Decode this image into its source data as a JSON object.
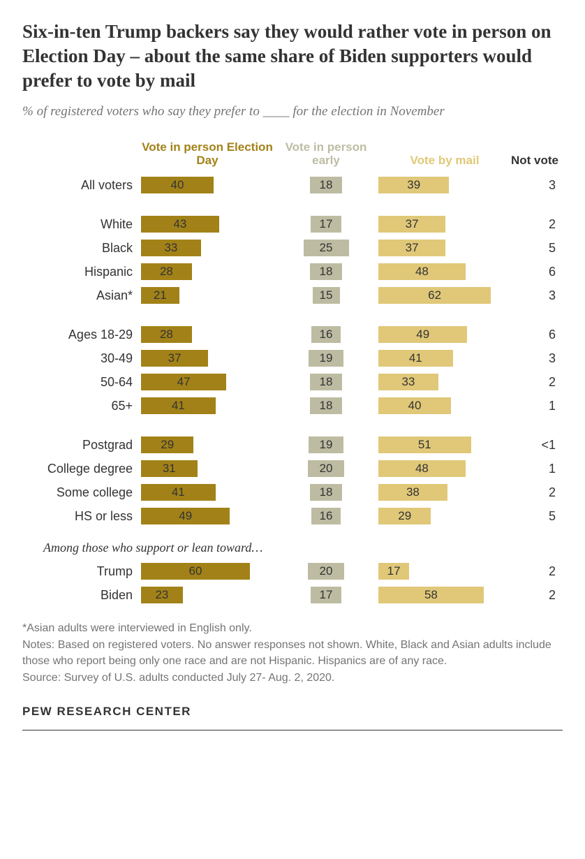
{
  "title": "Six-in-ten Trump backers say they would rather vote in person on Election Day – about the same share of Biden supporters would prefer to vote by mail",
  "subtitle": "% of registered voters who say they prefer to ____ for the election in November",
  "columns": {
    "c1": "Vote in person Election Day",
    "c2": "Vote in person early",
    "c3": "Vote by mail",
    "c4": "Not vote"
  },
  "colors": {
    "c1": "#a28218",
    "c2": "#bdbca2",
    "c3": "#e0c878",
    "background": "#ffffff",
    "text": "#333333",
    "muted": "#747474"
  },
  "bar_scale": {
    "c1": 2.6,
    "c2": 2.6,
    "c3": 2.6
  },
  "groups": [
    {
      "rows": [
        {
          "label": "All voters",
          "v1": 40,
          "v2": 18,
          "v3": 39,
          "nv": "3"
        }
      ]
    },
    {
      "rows": [
        {
          "label": "White",
          "v1": 43,
          "v2": 17,
          "v3": 37,
          "nv": "2"
        },
        {
          "label": "Black",
          "v1": 33,
          "v2": 25,
          "v3": 37,
          "nv": "5"
        },
        {
          "label": "Hispanic",
          "v1": 28,
          "v2": 18,
          "v3": 48,
          "nv": "6"
        },
        {
          "label": "Asian*",
          "v1": 21,
          "v2": 15,
          "v3": 62,
          "nv": "3"
        }
      ]
    },
    {
      "rows": [
        {
          "label": "Ages 18-29",
          "v1": 28,
          "v2": 16,
          "v3": 49,
          "nv": "6"
        },
        {
          "label": "30-49",
          "v1": 37,
          "v2": 19,
          "v3": 41,
          "nv": "3"
        },
        {
          "label": "50-64",
          "v1": 47,
          "v2": 18,
          "v3": 33,
          "nv": "2"
        },
        {
          "label": "65+",
          "v1": 41,
          "v2": 18,
          "v3": 40,
          "nv": "1"
        }
      ]
    },
    {
      "rows": [
        {
          "label": "Postgrad",
          "v1": 29,
          "v2": 19,
          "v3": 51,
          "nv": "<1"
        },
        {
          "label": "College degree",
          "v1": 31,
          "v2": 20,
          "v3": 48,
          "nv": "1"
        },
        {
          "label": "Some college",
          "v1": 41,
          "v2": 18,
          "v3": 38,
          "nv": "2"
        },
        {
          "label": "HS or less",
          "v1": 49,
          "v2": 16,
          "v3": 29,
          "nv": "5"
        }
      ]
    },
    {
      "subhead": "Among those who support or lean toward…",
      "rows": [
        {
          "label": "Trump",
          "v1": 60,
          "v2": 20,
          "v3": 17,
          "nv": "2"
        },
        {
          "label": "Biden",
          "v1": 23,
          "v2": 17,
          "v3": 58,
          "nv": "2"
        }
      ]
    }
  ],
  "footnotes": [
    "*Asian adults were interviewed in English only.",
    "Notes: Based on registered voters. No answer responses not shown. White, Black and Asian adults include those who report being only one race and are not Hispanic. Hispanics are of any race.",
    "Source: Survey of U.S. adults conducted July 27- Aug. 2, 2020."
  ],
  "attribution": "PEW RESEARCH CENTER"
}
